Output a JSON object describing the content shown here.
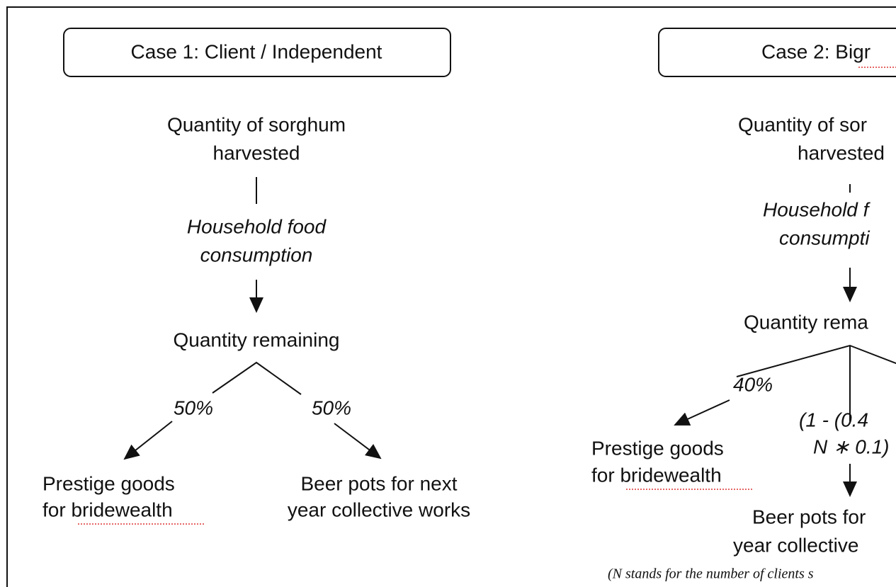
{
  "case1": {
    "title": "Case 1: Client / Independent",
    "harvest": [
      "Quantity of sorghum",
      "harvested"
    ],
    "consumption": [
      "Household food",
      "consumption"
    ],
    "remaining": "Quantity remaining",
    "left_share": "50%",
    "right_share": "50%",
    "left_outcome": [
      "Prestige goods",
      "for bridewealth"
    ],
    "right_outcome": [
      "Beer pots for next",
      "year collective works"
    ]
  },
  "case2": {
    "title": "Case 2: Bigr",
    "harvest": [
      "Quantity of sor",
      "harvested"
    ],
    "consumption": [
      "Household f",
      "consumpti"
    ],
    "remaining": "Quantity rema",
    "left_share": "40%",
    "middle_share": [
      "(1 - (0.4",
      "N ∗ 0.1)"
    ],
    "left_outcome": [
      "Prestige goods",
      "for bridewealth"
    ],
    "middle_outcome": [
      "Beer pots for",
      "year collective"
    ],
    "footnote": "(N stands for the number of clients s"
  }
}
